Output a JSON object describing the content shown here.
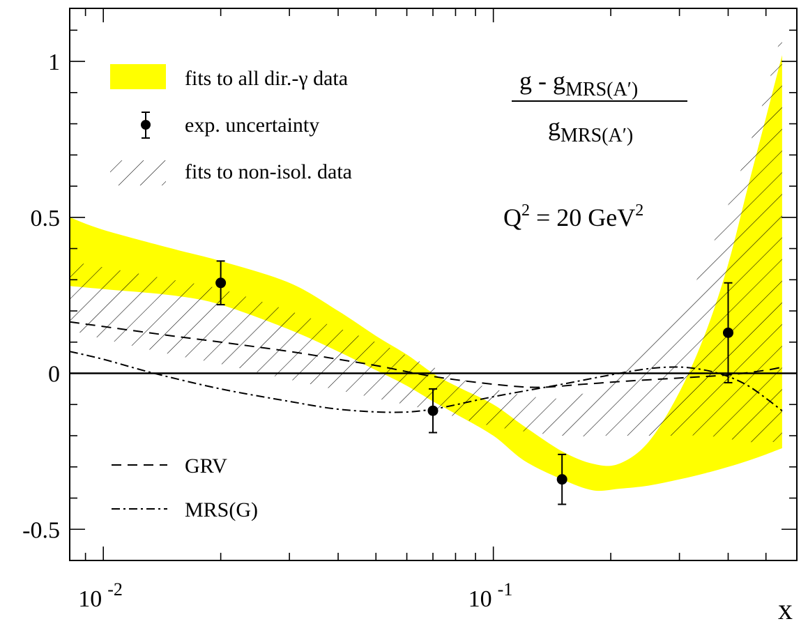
{
  "chart_data": {
    "type": "line",
    "x_axis": {
      "scale": "log",
      "range": [
        0.0082,
        0.6
      ],
      "label": "x",
      "tick_labels": [
        {
          "value": 0.01,
          "base": "10",
          "exponent": "-2"
        },
        {
          "value": 0.1,
          "base": "10",
          "exponent": "-1"
        }
      ]
    },
    "y_axis": {
      "scale": "linear",
      "range": [
        -0.6,
        1.17
      ],
      "tick_labels": [
        {
          "value": 1,
          "label": "1"
        },
        {
          "value": 0.5,
          "label": "0.5"
        },
        {
          "value": 0,
          "label": "0"
        },
        {
          "value": -0.5,
          "label": "-0.5"
        }
      ]
    },
    "formula": {
      "numerator_base": "g - g",
      "numerator_sub": "MRS(A′)",
      "denominator_base": "g",
      "denominator_sub": "MRS(A′)"
    },
    "scale_annotation": {
      "q": "Q",
      "q_exp": "2",
      "rest": " = 20 GeV",
      "unit_exp": "2"
    },
    "legend": {
      "yellow_band": "fits to all dir.-γ data",
      "data_points": "exp. uncertainty",
      "hatched_band": "fits to non-isol. data",
      "grv": "GRV",
      "mrsg": "MRS(G)"
    },
    "colors": {
      "yellow_band": "#ffff00",
      "ink": "#000000"
    },
    "yellow_band": [
      {
        "x": 0.0082,
        "lo": 0.28,
        "hi": 0.5
      },
      {
        "x": 0.01,
        "lo": 0.27,
        "hi": 0.46
      },
      {
        "x": 0.015,
        "lo": 0.25,
        "hi": 0.4
      },
      {
        "x": 0.02,
        "lo": 0.22,
        "hi": 0.36
      },
      {
        "x": 0.03,
        "lo": 0.14,
        "hi": 0.29
      },
      {
        "x": 0.04,
        "lo": 0.07,
        "hi": 0.2
      },
      {
        "x": 0.05,
        "lo": 0.01,
        "hi": 0.12
      },
      {
        "x": 0.06,
        "lo": -0.04,
        "hi": 0.06
      },
      {
        "x": 0.07,
        "lo": -0.09,
        "hi": 0.0
      },
      {
        "x": 0.08,
        "lo": -0.13,
        "hi": -0.04
      },
      {
        "x": 0.1,
        "lo": -0.2,
        "hi": -0.1
      },
      {
        "x": 0.12,
        "lo": -0.28,
        "hi": -0.17
      },
      {
        "x": 0.15,
        "lo": -0.34,
        "hi": -0.25
      },
      {
        "x": 0.18,
        "lo": -0.375,
        "hi": -0.29
      },
      {
        "x": 0.21,
        "lo": -0.37,
        "hi": -0.29
      },
      {
        "x": 0.25,
        "lo": -0.36,
        "hi": -0.22
      },
      {
        "x": 0.3,
        "lo": -0.34,
        "hi": -0.06
      },
      {
        "x": 0.35,
        "lo": -0.32,
        "hi": 0.13
      },
      {
        "x": 0.4,
        "lo": -0.3,
        "hi": 0.35
      },
      {
        "x": 0.45,
        "lo": -0.28,
        "hi": 0.6
      },
      {
        "x": 0.5,
        "lo": -0.26,
        "hi": 0.82
      },
      {
        "x": 0.55,
        "lo": -0.24,
        "hi": 1.02
      }
    ],
    "hatched_band": [
      {
        "x": 0.0082,
        "lo": 0.14,
        "hi": 0.36
      },
      {
        "x": 0.01,
        "lo": 0.11,
        "hi": 0.34
      },
      {
        "x": 0.015,
        "lo": 0.06,
        "hi": 0.3
      },
      {
        "x": 0.02,
        "lo": 0.03,
        "hi": 0.27
      },
      {
        "x": 0.03,
        "lo": -0.02,
        "hi": 0.2
      },
      {
        "x": 0.05,
        "lo": -0.08,
        "hi": 0.1
      },
      {
        "x": 0.07,
        "lo": -0.12,
        "hi": 0.02
      },
      {
        "x": 0.1,
        "lo": -0.17,
        "hi": -0.05
      },
      {
        "x": 0.15,
        "lo": -0.2,
        "hi": -0.08
      },
      {
        "x": 0.2,
        "lo": -0.2,
        "hi": -0.02
      },
      {
        "x": 0.25,
        "lo": -0.2,
        "hi": 0.08
      },
      {
        "x": 0.3,
        "lo": -0.2,
        "hi": 0.2
      },
      {
        "x": 0.35,
        "lo": -0.2,
        "hi": 0.36
      },
      {
        "x": 0.4,
        "lo": -0.21,
        "hi": 0.54
      },
      {
        "x": 0.45,
        "lo": -0.22,
        "hi": 0.72
      },
      {
        "x": 0.5,
        "lo": -0.22,
        "hi": 0.9
      },
      {
        "x": 0.55,
        "lo": -0.22,
        "hi": 1.1
      }
    ],
    "series": [
      {
        "name": "GRV",
        "dash": "dashed",
        "points": [
          {
            "x": 0.0082,
            "y": 0.165
          },
          {
            "x": 0.01,
            "y": 0.15
          },
          {
            "x": 0.015,
            "y": 0.12
          },
          {
            "x": 0.02,
            "y": 0.1
          },
          {
            "x": 0.03,
            "y": 0.07
          },
          {
            "x": 0.04,
            "y": 0.045
          },
          {
            "x": 0.05,
            "y": 0.025
          },
          {
            "x": 0.07,
            "y": -0.01
          },
          {
            "x": 0.1,
            "y": -0.035
          },
          {
            "x": 0.13,
            "y": -0.045
          },
          {
            "x": 0.17,
            "y": -0.035
          },
          {
            "x": 0.22,
            "y": -0.025
          },
          {
            "x": 0.3,
            "y": -0.015
          },
          {
            "x": 0.4,
            "y": -0.005
          },
          {
            "x": 0.5,
            "y": 0.01
          },
          {
            "x": 0.55,
            "y": 0.02
          }
        ]
      },
      {
        "name": "MRS(G)",
        "dash": "dash-dot",
        "points": [
          {
            "x": 0.0082,
            "y": 0.07
          },
          {
            "x": 0.01,
            "y": 0.045
          },
          {
            "x": 0.0135,
            "y": 0.0
          },
          {
            "x": 0.02,
            "y": -0.05
          },
          {
            "x": 0.03,
            "y": -0.09
          },
          {
            "x": 0.04,
            "y": -0.115
          },
          {
            "x": 0.055,
            "y": -0.125
          },
          {
            "x": 0.07,
            "y": -0.115
          },
          {
            "x": 0.1,
            "y": -0.075
          },
          {
            "x": 0.15,
            "y": -0.035
          },
          {
            "x": 0.2,
            "y": -0.005
          },
          {
            "x": 0.25,
            "y": 0.015
          },
          {
            "x": 0.3,
            "y": 0.02
          },
          {
            "x": 0.35,
            "y": 0.01
          },
          {
            "x": 0.4,
            "y": -0.01
          },
          {
            "x": 0.45,
            "y": -0.04
          },
          {
            "x": 0.5,
            "y": -0.08
          },
          {
            "x": 0.55,
            "y": -0.12
          }
        ]
      }
    ],
    "data_points": [
      {
        "x": 0.02,
        "y": 0.29,
        "err": 0.07
      },
      {
        "x": 0.07,
        "y": -0.12,
        "err": 0.07
      },
      {
        "x": 0.15,
        "y": -0.34,
        "err": 0.08
      },
      {
        "x": 0.4,
        "y": 0.13,
        "err": 0.16
      }
    ],
    "grid": false
  }
}
